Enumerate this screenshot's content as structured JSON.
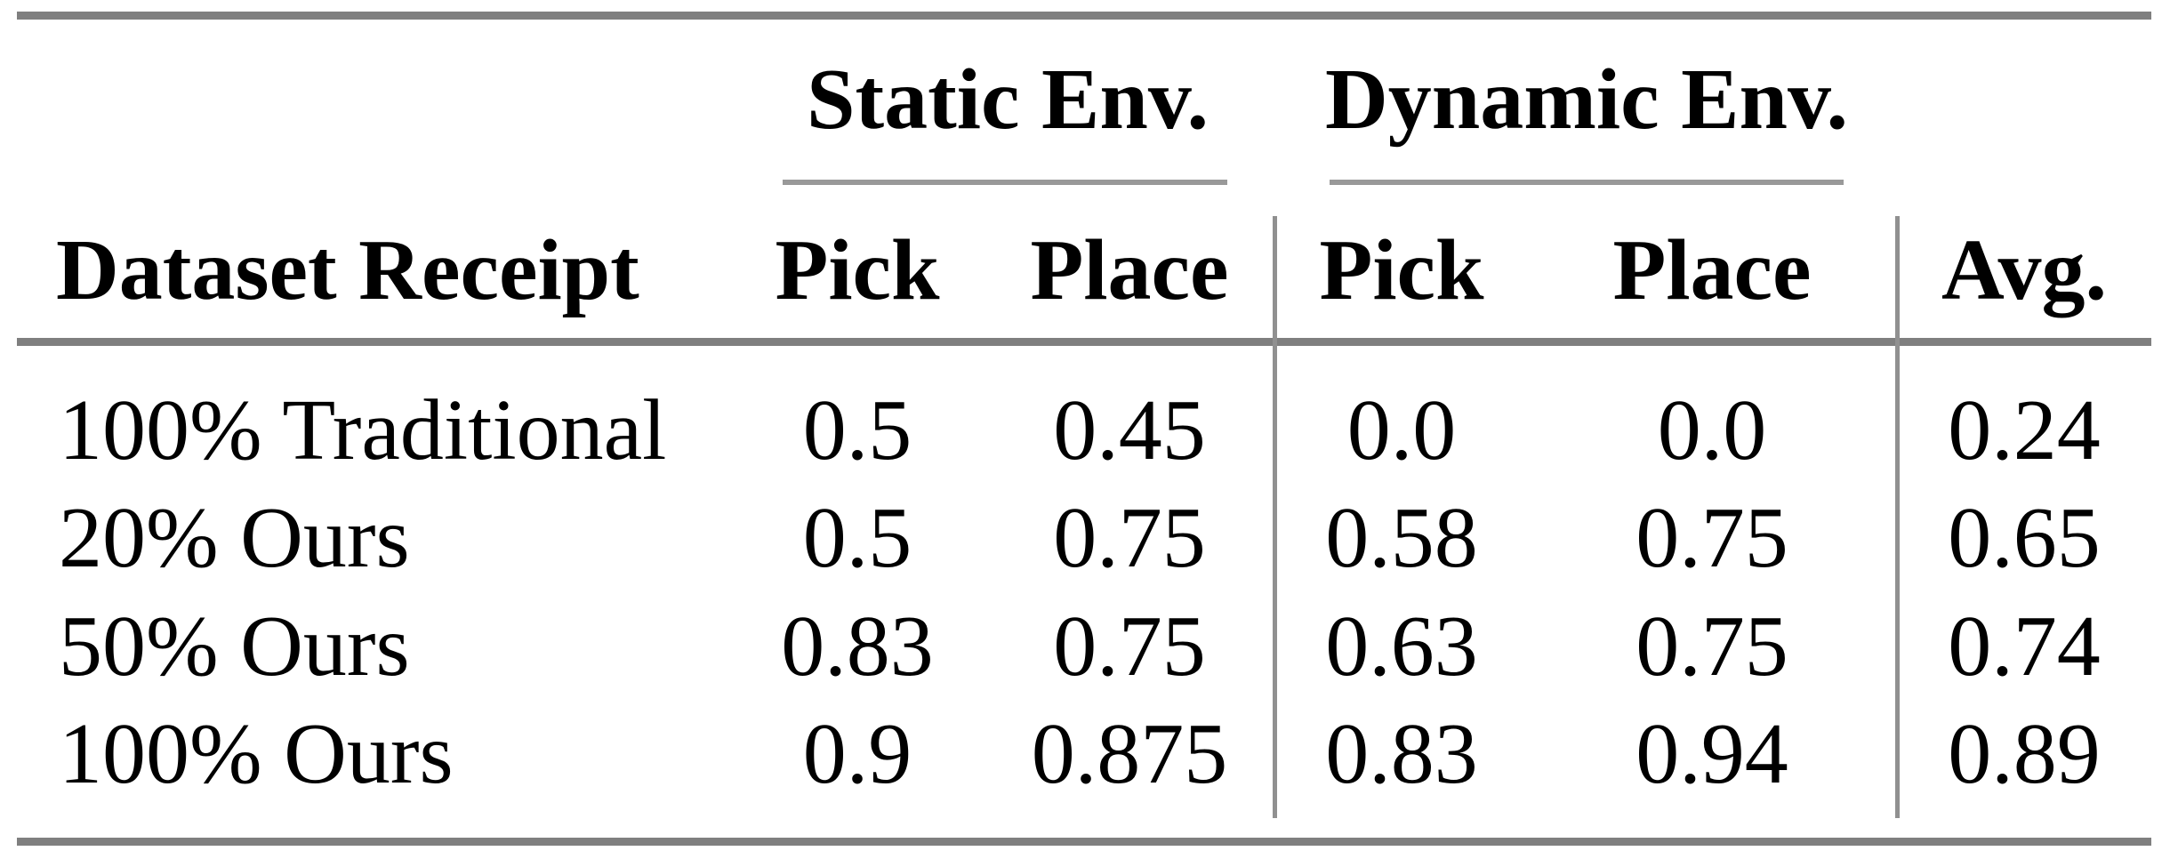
{
  "table": {
    "group_headers": {
      "static": "Static Env.",
      "dynamic": "Dynamic Env."
    },
    "column_headers": {
      "dataset": "Dataset Receipt",
      "static_pick": "Pick",
      "static_place": "Place",
      "dynamic_pick": "Pick",
      "dynamic_place": "Place",
      "avg": "Avg."
    },
    "rows": [
      {
        "label": "100% Traditional",
        "values": [
          "0.5",
          "0.45",
          "0.0",
          "0.0",
          "0.24"
        ]
      },
      {
        "label": "20% Ours",
        "values": [
          "0.5",
          "0.75",
          "0.58",
          "0.75",
          "0.65"
        ]
      },
      {
        "label": "50% Ours",
        "values": [
          "0.83",
          "0.75",
          "0.63",
          "0.75",
          "0.74"
        ]
      },
      {
        "label": "100% Ours",
        "values": [
          "0.9",
          "0.875",
          "0.83",
          "0.94",
          "0.89"
        ]
      }
    ],
    "colors": {
      "rule_thick": "#7f7f7f",
      "rule_thin": "#999999",
      "separator": "#909090",
      "text": "#000000",
      "background": "#ffffff"
    }
  },
  "chart_data": {
    "type": "table",
    "title": "",
    "column_groups": [
      {
        "label": "Static Env.",
        "columns": [
          "Pick",
          "Place"
        ]
      },
      {
        "label": "Dynamic Env.",
        "columns": [
          "Pick",
          "Place"
        ]
      }
    ],
    "columns": [
      "Dataset Receipt",
      "Static Env. Pick",
      "Static Env. Place",
      "Dynamic Env. Pick",
      "Dynamic Env. Place",
      "Avg."
    ],
    "rows": [
      [
        "100% Traditional",
        0.5,
        0.45,
        0.0,
        0.0,
        0.24
      ],
      [
        "20% Ours",
        0.5,
        0.75,
        0.58,
        0.75,
        0.65
      ],
      [
        "50% Ours",
        0.83,
        0.75,
        0.63,
        0.75,
        0.74
      ],
      [
        "100% Ours",
        0.9,
        0.875,
        0.83,
        0.94,
        0.89
      ]
    ]
  }
}
